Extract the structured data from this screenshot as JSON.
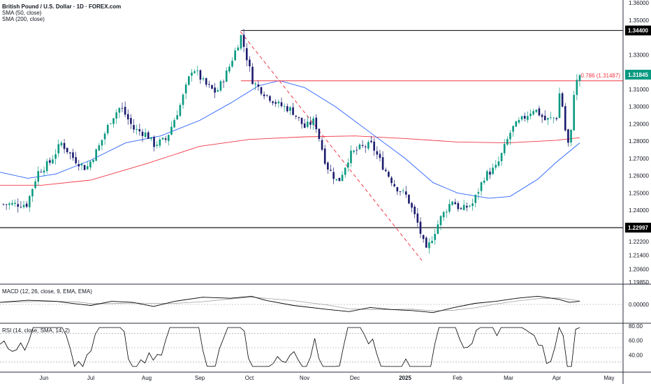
{
  "header": {
    "symbol_title": "British Pound / U.S. Dollar · 1D · FOREX.com",
    "sma50_label": "SMA (50, close)",
    "sma200_label": "SMA (200, close)"
  },
  "panes": {
    "macd_label": "MACD (12, 26, close, 9, EMA, EMA)",
    "rsi_label": "RSI (14, close, SMA, 14, 2)"
  },
  "colors": {
    "up": "#089981",
    "down": "#1a1a6e",
    "sma50": "#2962ff",
    "sma200": "#f23645",
    "fib": "#f23645",
    "trendline": "#f23645",
    "level": "#000000",
    "price_tag": "#089981"
  },
  "chart_data": [
    {
      "type": "candlestick",
      "ylim": [
        1.1985,
        1.36
      ],
      "price_axis_ticks": [
        "1.36000",
        "1.35000",
        "1.34400",
        "1.33000",
        "1.31845",
        "1.31000",
        "1.30000",
        "1.29000",
        "1.28000",
        "1.27000",
        "1.26000",
        "1.25000",
        "1.24000",
        "1.22997",
        "1.22200",
        "1.21400",
        "1.20600",
        "1.19850"
      ],
      "time_axis_labels": [
        "Jun",
        "Jul",
        "Aug",
        "Sep",
        "Oct",
        "Nov",
        "Dec",
        "2025",
        "Feb",
        "Mar",
        "Apr",
        "May"
      ],
      "key_levels": [
        {
          "label": "1.34400",
          "value": 1.344
        },
        {
          "label": "1.22997",
          "value": 1.22997
        }
      ],
      "fib_level": {
        "label": "0.786 (1.31487)",
        "value": 1.31487
      },
      "last_price": {
        "label": "1.31845",
        "value": 1.31845
      },
      "trendline": {
        "from": {
          "date": "Sep 26",
          "value": 1.3434
        },
        "to": {
          "date": "Jan 13",
          "value": 1.211
        }
      },
      "series_closes_anchor": [
        [
          "May 20",
          1.2435
        ],
        [
          "May 27",
          1.262
        ],
        [
          "Jun 5",
          1.268
        ],
        [
          "Jun 12",
          1.279
        ],
        [
          "Jun 20",
          1.27
        ],
        [
          "Jun 28",
          1.264
        ],
        [
          "Jul 5",
          1.276
        ],
        [
          "Jul 12",
          1.293
        ],
        [
          "Jul 17",
          1.3
        ],
        [
          "Jul 24",
          1.287
        ],
        [
          "Jul 31",
          1.284
        ],
        [
          "Aug 5",
          1.278
        ],
        [
          "Aug 12",
          1.281
        ],
        [
          "Aug 20",
          1.301
        ],
        [
          "Aug 27",
          1.323
        ],
        [
          "Sep 4",
          1.313
        ],
        [
          "Sep 11",
          1.308
        ],
        [
          "Sep 18",
          1.321
        ],
        [
          "Sep 26",
          1.341
        ],
        [
          "Oct 3",
          1.314
        ],
        [
          "Oct 10",
          1.307
        ],
        [
          "Oct 17",
          1.301
        ],
        [
          "Oct 24",
          1.298
        ],
        [
          "Oct 31",
          1.288
        ],
        [
          "Nov 7",
          1.292
        ],
        [
          "Nov 14",
          1.266
        ],
        [
          "Nov 21",
          1.256
        ],
        [
          "Nov 28",
          1.272
        ],
        [
          "Dec 4",
          1.276
        ],
        [
          "Dec 11",
          1.278
        ],
        [
          "Dec 18",
          1.265
        ],
        [
          "Dec 25",
          1.254
        ],
        [
          "Jan 2",
          1.248
        ],
        [
          "Jan 8",
          1.233
        ],
        [
          "Jan 13",
          1.216
        ],
        [
          "Jan 21",
          1.235
        ],
        [
          "Jan 28",
          1.246
        ],
        [
          "Feb 3",
          1.24
        ],
        [
          "Feb 10",
          1.244
        ],
        [
          "Feb 17",
          1.26
        ],
        [
          "Feb 24",
          1.265
        ],
        [
          "Mar 3",
          1.287
        ],
        [
          "Mar 10",
          1.293
        ],
        [
          "Mar 17",
          1.299
        ],
        [
          "Mar 24",
          1.292
        ],
        [
          "Mar 31",
          1.294
        ],
        [
          "Apr 3",
          1.311
        ],
        [
          "Apr 7",
          1.277
        ],
        [
          "Apr 9",
          1.282
        ],
        [
          "Apr 11",
          1.31
        ],
        [
          "Apr 14",
          1.3185
        ]
      ]
    },
    {
      "type": "line",
      "title": "MACD (12, 26, close, 9, EMA, EMA)",
      "ticks": [
        "0.00000"
      ],
      "ylim": [
        -0.03,
        0.03
      ]
    },
    {
      "type": "line",
      "title": "RSI (14, close, SMA, 14, 2)",
      "ticks": [
        "80.00",
        "60.00",
        "40.00"
      ],
      "ylim": [
        20,
        80
      ]
    }
  ]
}
